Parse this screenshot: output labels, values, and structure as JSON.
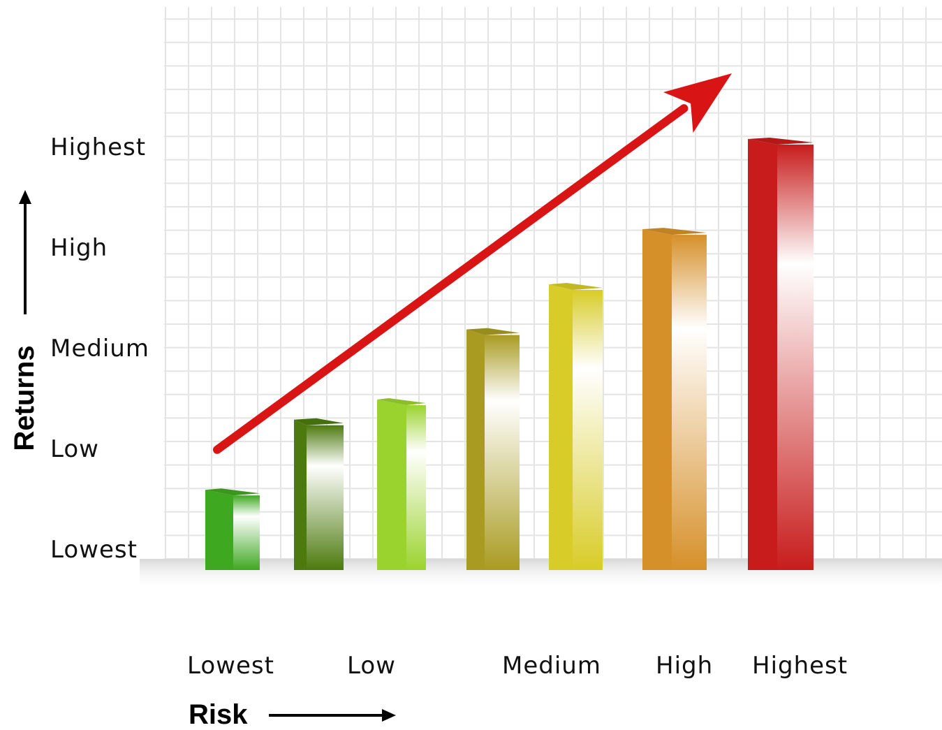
{
  "chart_data": {
    "type": "bar",
    "xlabel": "Risk",
    "ylabel": "Returns",
    "y_ticks": [
      "Lowest",
      "Low",
      "Medium",
      "High",
      "Highest"
    ],
    "x_ticks": [
      "Lowest",
      "Low",
      "Medium",
      "High",
      "Highest"
    ],
    "ylim": [
      0,
      4.5
    ],
    "grid": true,
    "values": [
      0.8,
      1.5,
      1.7,
      2.4,
      2.85,
      3.4,
      4.3
    ],
    "colors": [
      "#3fa821",
      "#4d7a0e",
      "#9bd32e",
      "#a99b22",
      "#d8cc28",
      "#d6902a",
      "#c81c1c"
    ],
    "trend_arrow": {
      "from": [
        0,
        1.2
      ],
      "to": [
        6,
        4.9
      ],
      "color": "#d81414"
    }
  }
}
